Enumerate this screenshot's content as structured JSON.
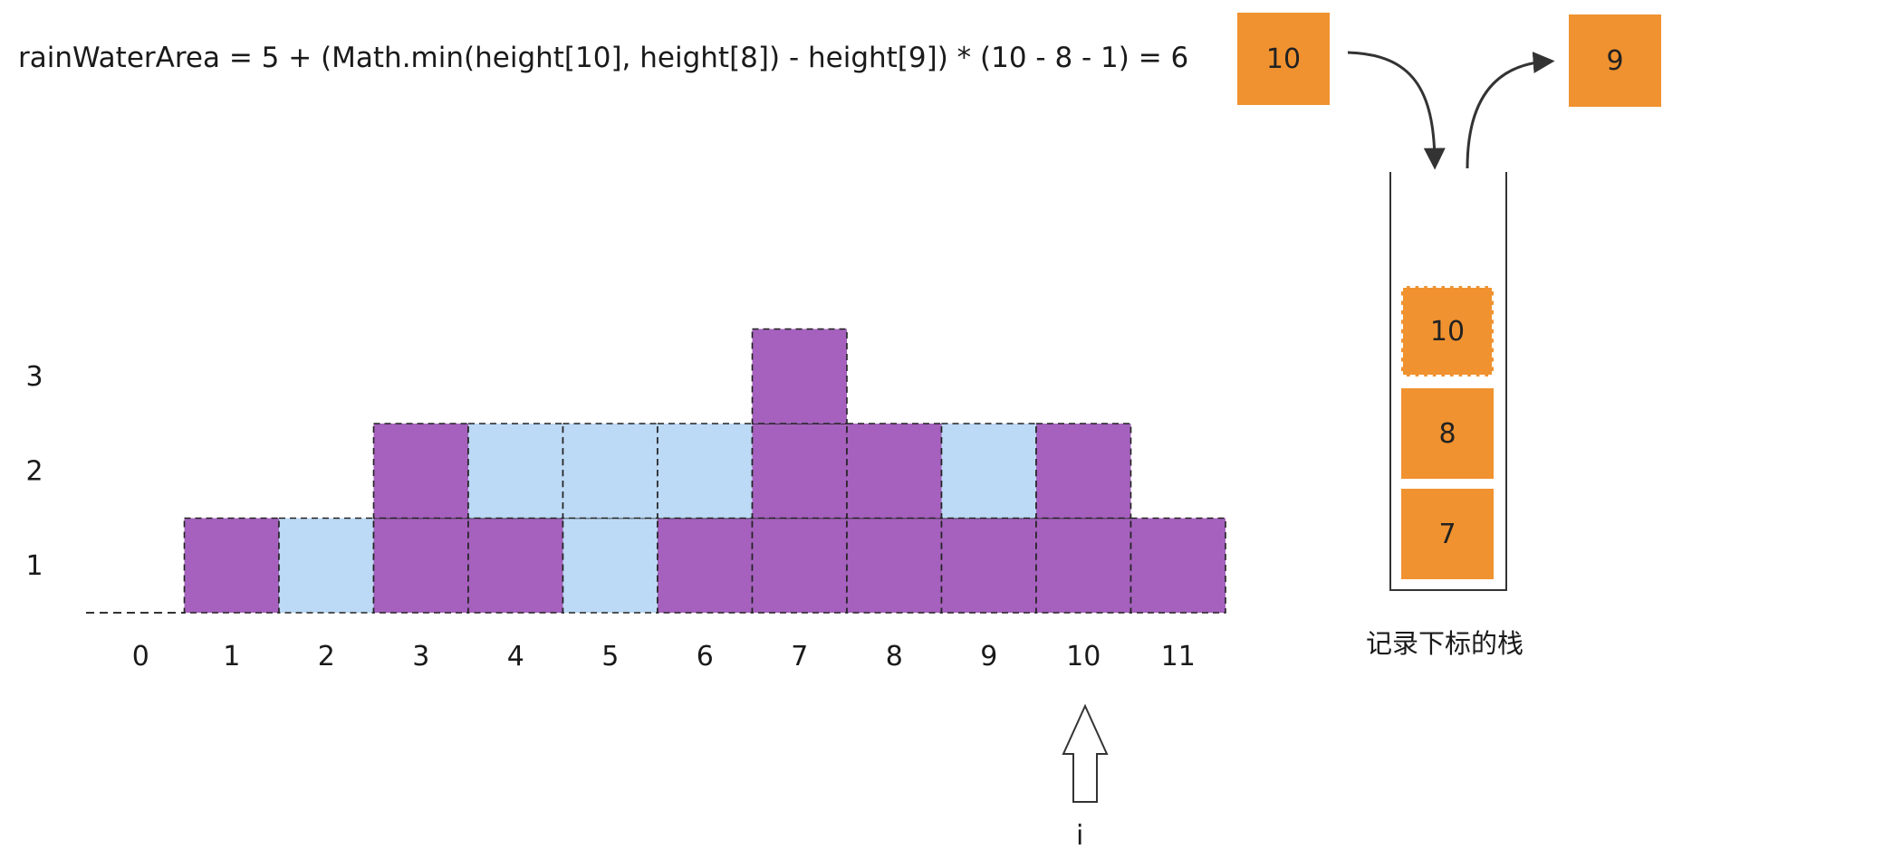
{
  "formula": "rainWaterArea = 5 +  (Math.min(height[10], height[8]) - height[9]) * (10 - 8 - 1) = 6",
  "x_labels": [
    "0",
    "1",
    "2",
    "3",
    "4",
    "5",
    "6",
    "7",
    "8",
    "9",
    "10",
    "11"
  ],
  "y_labels": [
    "1",
    "2",
    "3"
  ],
  "columns": [
    {
      "index": 0,
      "height": 0,
      "water": 0
    },
    {
      "index": 1,
      "height": 1,
      "water": 0
    },
    {
      "index": 2,
      "height": 0,
      "water": 1
    },
    {
      "index": 3,
      "height": 2,
      "water": 0
    },
    {
      "index": 4,
      "height": 1,
      "water": 1
    },
    {
      "index": 5,
      "height": 0,
      "water": 2
    },
    {
      "index": 6,
      "height": 1,
      "water": 1
    },
    {
      "index": 7,
      "height": 3,
      "water": 0
    },
    {
      "index": 8,
      "height": 2,
      "water": 0
    },
    {
      "index": 9,
      "height": 1,
      "water": 1
    },
    {
      "index": 10,
      "height": 2,
      "water": 0
    },
    {
      "index": 11,
      "height": 1,
      "water": 0
    }
  ],
  "colors": {
    "bar": "#a561bd",
    "water": "#bcd9f5",
    "stack_item": "#f0922f",
    "stroke": "#222222"
  },
  "pushed_item": "10",
  "popped_item": "9",
  "stack": {
    "caption": "记录下标的栈",
    "items_bottom_to_top": [
      "7",
      "8",
      "10"
    ],
    "top_item_dashed": true
  },
  "pointer": {
    "label": "i",
    "index": 10
  }
}
